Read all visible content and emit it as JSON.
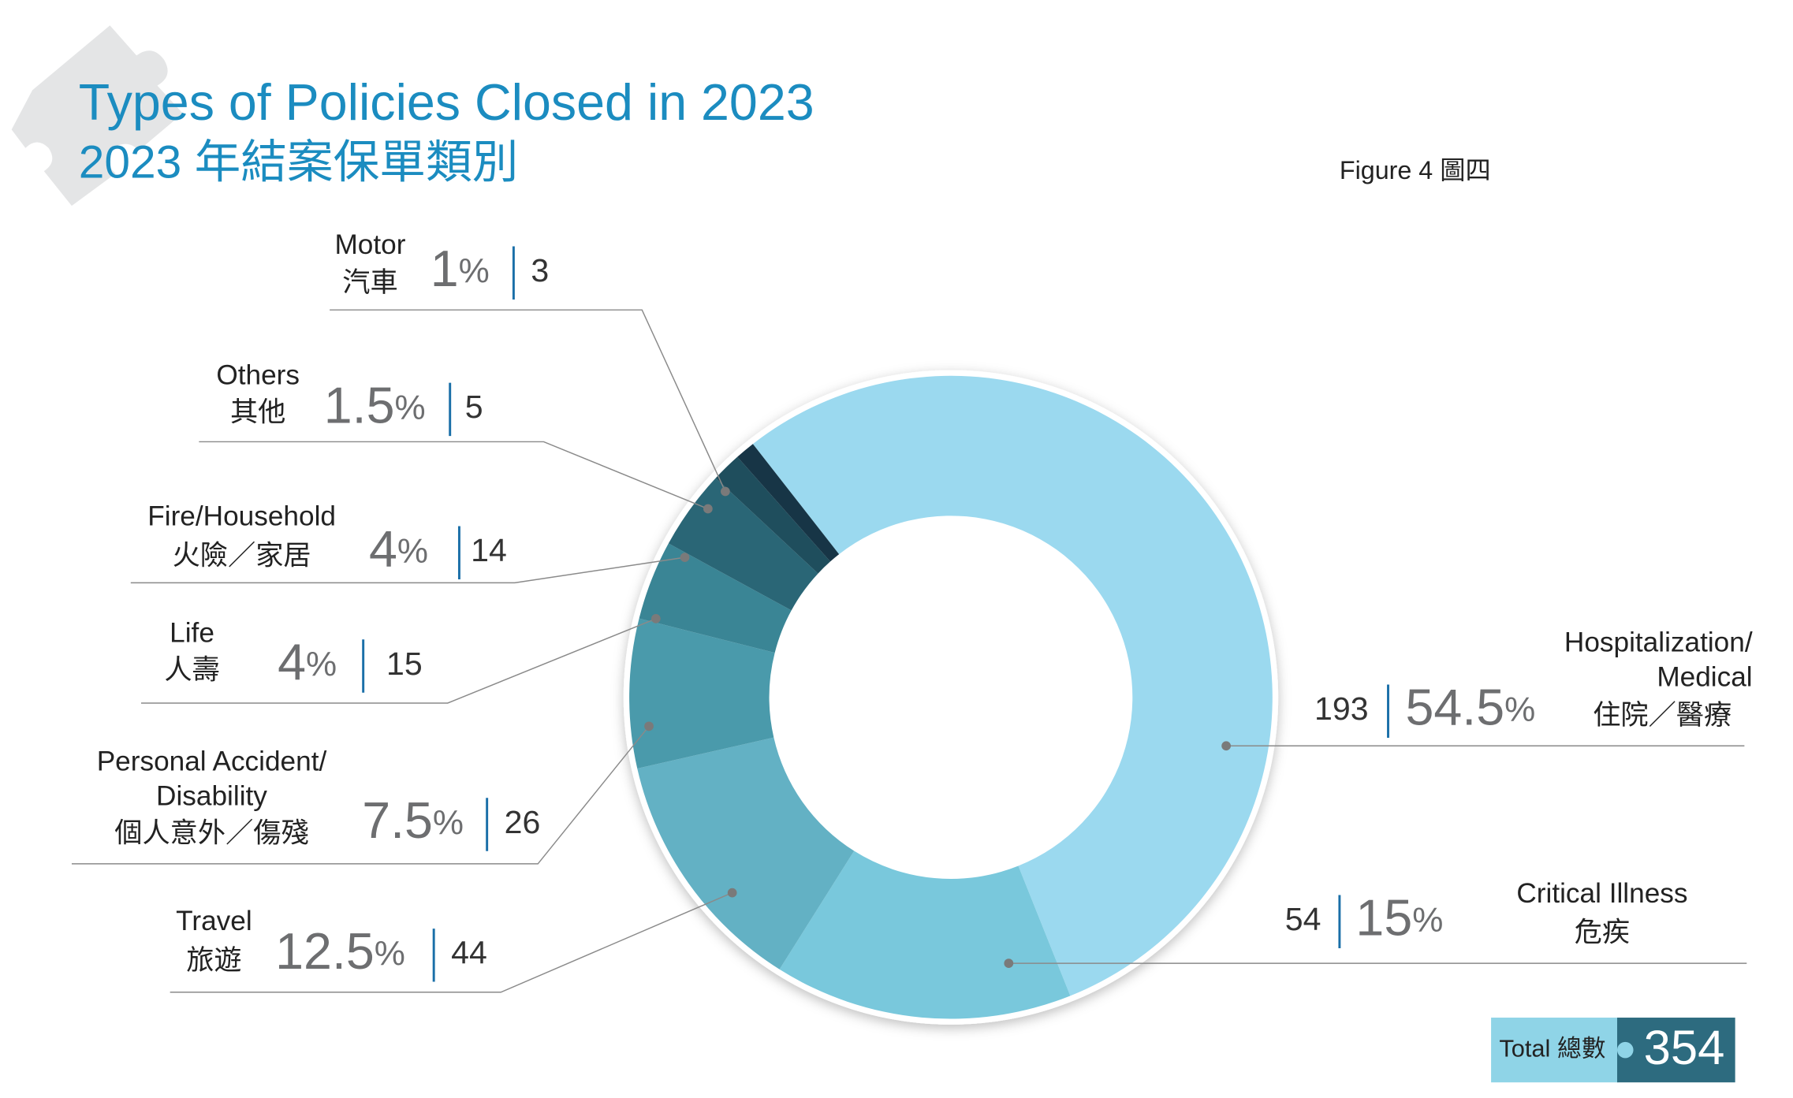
{
  "title": [
    "Types of Policies Closed in 2023",
    "2023 年結案保單類別"
  ],
  "figure_label": "Figure 4 圖四",
  "chart_data": {
    "type": "donut",
    "categories": [
      [
        "Hospitalization/",
        "Medical",
        "住院／醫療"
      ],
      [
        "Critical Illness",
        "危疾"
      ],
      [
        "Travel",
        "旅遊"
      ],
      [
        "Personal Accident/",
        "Disability",
        "個人意外／傷殘"
      ],
      [
        "Life",
        "人壽"
      ],
      [
        "Fire/Household",
        "火險／家居"
      ],
      [
        "Others",
        "其他"
      ],
      [
        "Motor",
        "汽車"
      ]
    ],
    "values": [
      54.5,
      15,
      12.5,
      7.5,
      4,
      4,
      1.5,
      1
    ],
    "unit": "%",
    "counts": [
      193,
      54,
      44,
      26,
      15,
      14,
      5,
      3
    ],
    "colors": [
      "#9bd9ef",
      "#79c8dc",
      "#63b1c4",
      "#4a9aab",
      "#3a8595",
      "#2a6676",
      "#1f4e5d",
      "#173546"
    ],
    "total": {
      "label": "Total 總數",
      "value": 354
    }
  }
}
